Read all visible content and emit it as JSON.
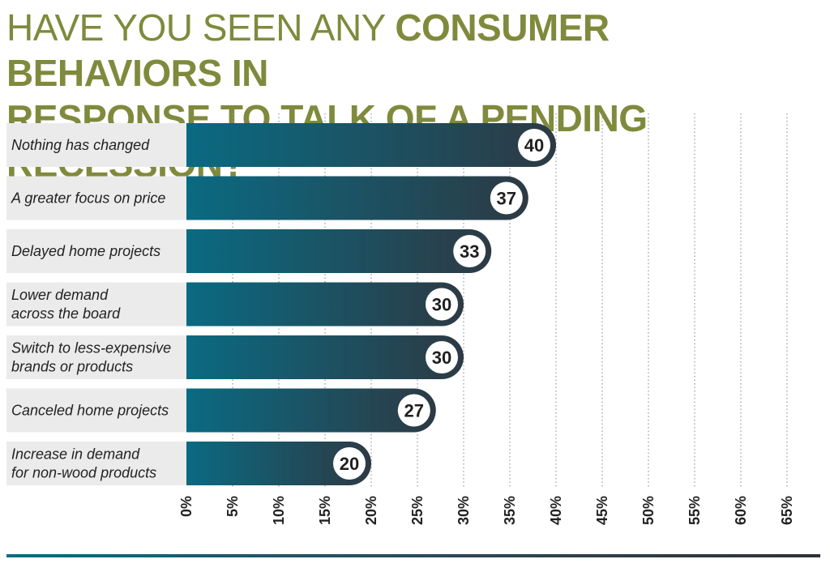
{
  "title": {
    "light": "HAVE YOU SEEN ANY ",
    "bold_line1": "CONSUMER BEHAVIORS IN",
    "bold_line2": "RESPONSE TO TALK OF A PENDING RECESSION?"
  },
  "chart_data": {
    "type": "bar",
    "orientation": "horizontal",
    "categories": [
      [
        "Nothing has changed"
      ],
      [
        "A greater focus on price"
      ],
      [
        "Delayed home projects"
      ],
      [
        "Lower demand",
        "across the board"
      ],
      [
        "Switch to less-expensive",
        "brands or products"
      ],
      [
        "Canceled home projects"
      ],
      [
        "Increase in demand",
        "for non-wood products"
      ]
    ],
    "values": [
      40,
      37,
      33,
      30,
      30,
      27,
      20
    ],
    "value_labels": [
      "40",
      "37",
      "33",
      "30",
      "30",
      "27",
      "20"
    ],
    "xlim": [
      0,
      65
    ],
    "xtick_labels": [
      "0%",
      "5%",
      "10%",
      "15%",
      "20%",
      "25%",
      "30%",
      "35%",
      "40%",
      "45%",
      "50%",
      "55%",
      "60%",
      "65%"
    ],
    "grid": "vertical-dotted",
    "colors": {
      "bar_start": "#0a6a82",
      "bar_end": "#2d3a44",
      "label_bg": "#ebebeb",
      "grid": "#9a9a9a",
      "badge_bg": "#ffffff",
      "badge_text": "#1f1f1f"
    }
  }
}
